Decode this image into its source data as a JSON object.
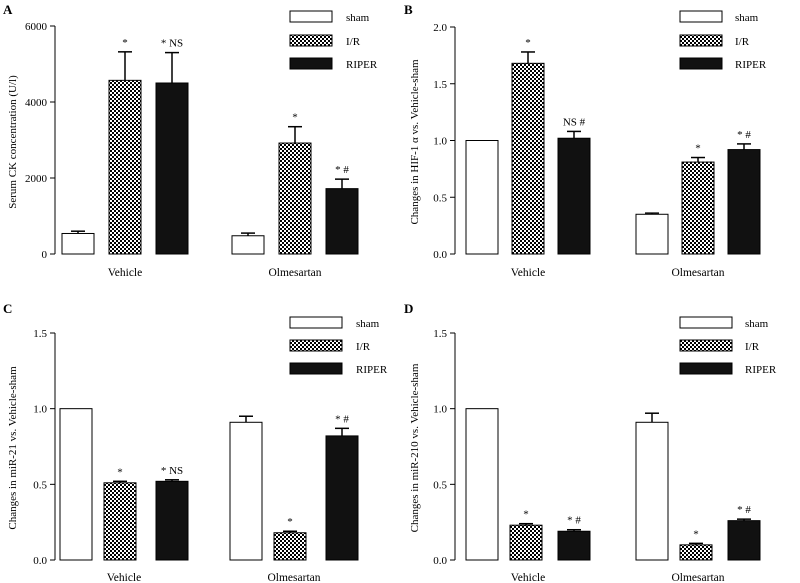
{
  "chart_data": [
    {
      "panel": "A",
      "type": "bar",
      "ylabel": "Serum CK concentration (U/l)",
      "ylim": [
        0,
        6000
      ],
      "yticks": [
        "0",
        "2000",
        "4000",
        "6000"
      ],
      "ytick_values": [
        0,
        2000,
        4000,
        6000
      ],
      "categories": [
        "Vehicle",
        "Olmesartan"
      ],
      "series": [
        {
          "name": "sham",
          "values": [
            540,
            480
          ],
          "errors": [
            60,
            70
          ]
        },
        {
          "name": "I/R",
          "values": [
            4570,
            2920
          ],
          "errors": [
            750,
            430
          ]
        },
        {
          "name": "RIPER",
          "values": [
            4500,
            1720
          ],
          "errors": [
            800,
            250
          ]
        }
      ],
      "annotations": [
        [
          "",
          "*",
          "* NS"
        ],
        [
          "",
          "*",
          "* #"
        ]
      ]
    },
    {
      "panel": "B",
      "type": "bar",
      "ylabel": "Changes in HIF-1 α vs. Vehicle-sham",
      "ylim": [
        0,
        2.0
      ],
      "yticks": [
        "0.0",
        "0.5",
        "1.0",
        "1.5",
        "2.0"
      ],
      "ytick_values": [
        0,
        0.5,
        1.0,
        1.5,
        2.0
      ],
      "categories": [
        "Vehicle",
        "Olmesartan"
      ],
      "series": [
        {
          "name": "sham",
          "values": [
            1.0,
            0.35
          ],
          "errors": [
            0.0,
            0.01
          ]
        },
        {
          "name": "I/R",
          "values": [
            1.68,
            0.81
          ],
          "errors": [
            0.1,
            0.04
          ]
        },
        {
          "name": "RIPER",
          "values": [
            1.02,
            0.92
          ],
          "errors": [
            0.06,
            0.05
          ]
        }
      ],
      "annotations": [
        [
          "",
          "*",
          "NS #"
        ],
        [
          "",
          "*",
          "* #"
        ]
      ]
    },
    {
      "panel": "C",
      "type": "bar",
      "ylabel": "Changes in miR-21 vs. Vehicle-sham",
      "ylim": [
        0,
        1.5
      ],
      "yticks": [
        "0.0",
        "0.5",
        "1.0",
        "1.5"
      ],
      "ytick_values": [
        0,
        0.5,
        1.0,
        1.5
      ],
      "categories": [
        "Vehicle",
        "Olmesartan"
      ],
      "series": [
        {
          "name": "sham",
          "values": [
            1.0,
            0.91
          ],
          "errors": [
            0.0,
            0.04
          ]
        },
        {
          "name": "I/R",
          "values": [
            0.51,
            0.18
          ],
          "errors": [
            0.01,
            0.01
          ]
        },
        {
          "name": "RIPER",
          "values": [
            0.52,
            0.82
          ],
          "errors": [
            0.01,
            0.05
          ]
        }
      ],
      "annotations": [
        [
          "",
          "*",
          "* NS"
        ],
        [
          "",
          "*",
          "* #"
        ]
      ]
    },
    {
      "panel": "D",
      "type": "bar",
      "ylabel": "Changes in miR-210 vs. Vehicle-sham",
      "ylim": [
        0,
        1.5
      ],
      "yticks": [
        "0.0",
        "0.5",
        "1.0",
        "1.5"
      ],
      "ytick_values": [
        0,
        0.5,
        1.0,
        1.5
      ],
      "categories": [
        "Vehicle",
        "Olmesartan"
      ],
      "series": [
        {
          "name": "sham",
          "values": [
            1.0,
            0.91
          ],
          "errors": [
            0.0,
            0.06
          ]
        },
        {
          "name": "I/R",
          "values": [
            0.23,
            0.1
          ],
          "errors": [
            0.01,
            0.01
          ]
        },
        {
          "name": "RIPER",
          "values": [
            0.19,
            0.26
          ],
          "errors": [
            0.01,
            0.01
          ]
        }
      ],
      "annotations": [
        [
          "",
          "*",
          "* #"
        ],
        [
          "",
          "*",
          "* #"
        ]
      ]
    }
  ]
}
